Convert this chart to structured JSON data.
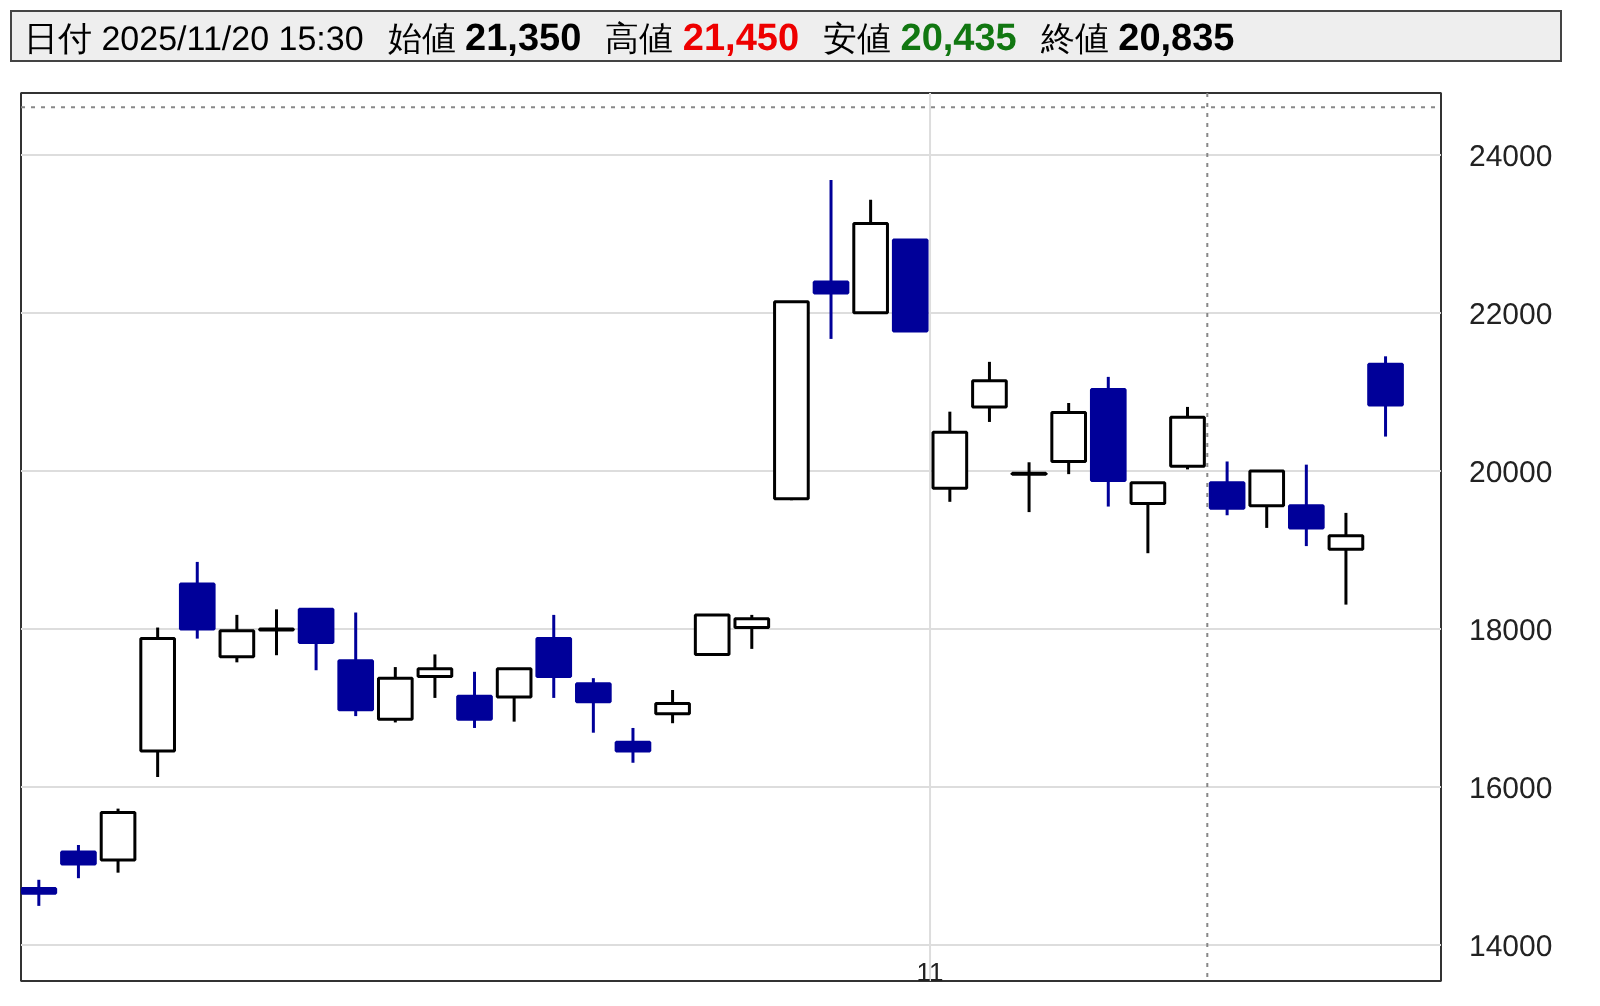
{
  "chart_data": {
    "type": "candlestick",
    "title": "日付 2025/11/20 15:30",
    "annotations": [
      "始値 21,350",
      "高値 21,450",
      "安値 20,435",
      "終値 20,835",
      "11"
    ],
    "categories": [
      null,
      null,
      null,
      null,
      null,
      null,
      null,
      null,
      null,
      null,
      null,
      null,
      null,
      null,
      null,
      null,
      null,
      null,
      null,
      null,
      null,
      null,
      null,
      null,
      null,
      null,
      null,
      null,
      null,
      null,
      null,
      null,
      null,
      null,
      null
    ],
    "ohlc": [
      [
        14720,
        14830,
        14500,
        14660
      ],
      [
        15180,
        15270,
        14850,
        15030
      ],
      [
        15080,
        15730,
        14920,
        15680
      ],
      [
        16460,
        18020,
        16130,
        17880
      ],
      [
        18570,
        18850,
        17880,
        18000
      ],
      [
        17650,
        18180,
        17580,
        17980
      ],
      [
        17990,
        18250,
        17670,
        18000
      ],
      [
        18250,
        18250,
        17480,
        17830
      ],
      [
        17600,
        18210,
        16900,
        16980
      ],
      [
        16860,
        17520,
        16820,
        17380
      ],
      [
        17400,
        17680,
        17130,
        17500
      ],
      [
        17150,
        17460,
        16750,
        16860
      ],
      [
        17140,
        17500,
        16830,
        17500
      ],
      [
        17880,
        18180,
        17130,
        17400
      ],
      [
        17310,
        17380,
        16690,
        17080
      ],
      [
        16570,
        16750,
        16310,
        16460
      ],
      [
        16930,
        17230,
        16810,
        17060
      ],
      [
        17680,
        18180,
        17670,
        18180
      ],
      [
        18020,
        18180,
        17750,
        18130
      ],
      [
        19650,
        22140,
        19630,
        22140
      ],
      [
        22390,
        23680,
        21670,
        22250
      ],
      [
        22000,
        23430,
        22000,
        23130
      ],
      [
        22920,
        22920,
        21770,
        21770
      ],
      [
        19780,
        20750,
        19610,
        20490
      ],
      [
        20810,
        21380,
        20620,
        21140
      ],
      [
        19970,
        20110,
        19480,
        19960
      ],
      [
        20120,
        20860,
        19960,
        20740
      ],
      [
        21030,
        21190,
        19550,
        19880
      ],
      [
        19590,
        19850,
        18960,
        19850
      ],
      [
        20060,
        20810,
        20020,
        20680
      ],
      [
        19850,
        20120,
        19440,
        19530
      ],
      [
        19560,
        20000,
        19280,
        20000
      ],
      [
        19560,
        20080,
        19050,
        19280
      ],
      [
        19010,
        19470,
        18310,
        19180
      ],
      [
        21350,
        21450,
        20435,
        20835
      ]
    ],
    "colors": [
      "#000099",
      "#000099",
      "#ffffff",
      "#ffffff",
      "#000099",
      "#ffffff",
      "#ffffff",
      "#000099",
      "#000099",
      "#ffffff",
      "#ffffff",
      "#000099",
      "#ffffff",
      "#000099",
      "#000099",
      "#000099",
      "#ffffff",
      "#ffffff",
      "#ffffff",
      "#ffffff",
      "#000099",
      "#ffffff",
      "#000099",
      "#ffffff",
      "#ffffff",
      "#ffffff",
      "#ffffff",
      "#000099",
      "#ffffff",
      "#ffffff",
      "#000099",
      "#ffffff",
      "#000099",
      "#ffffff",
      "#000099"
    ],
    "ylim": [
      13550,
      24780
    ],
    "yticks": [
      14000,
      16000,
      18000,
      20000,
      22000,
      24000
    ],
    "ref_lines": [
      {
        "axis": "y",
        "value": 24600,
        "label": null,
        "color": "#888888",
        "line_style": "dotted"
      }
    ],
    "grid": true
  }
}
